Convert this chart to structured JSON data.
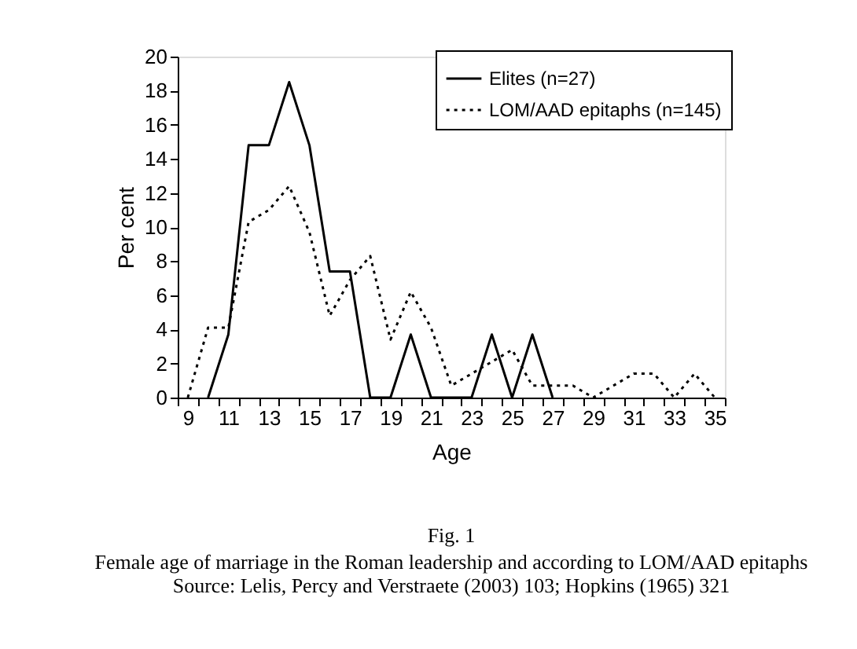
{
  "chart_data": {
    "type": "line",
    "title": "Fig. 1",
    "subtitle": "Female age of marriage in the Roman leadership and according to LOM/AAD epitaphs",
    "annotations": [
      "Source: Lelis, Percy and Verstraete (2003) 103; Hopkins (1965) 321"
    ],
    "xlabel": "Age",
    "ylabel": "Per cent",
    "categories": [
      "9",
      null,
      "11",
      null,
      "13",
      null,
      "15",
      null,
      "17",
      null,
      "19",
      null,
      "21",
      null,
      "23",
      null,
      "25",
      null,
      "27",
      null,
      "29",
      null,
      "31",
      null,
      "33",
      null,
      "35"
    ],
    "series": [
      {
        "name": "Elites (n=27)",
        "color": "#000000",
        "line_style": "solid",
        "values": [
          null,
          0,
          3.7,
          14.8,
          14.8,
          18.5,
          14.8,
          7.4,
          7.4,
          0,
          0,
          3.7,
          0,
          0,
          0,
          3.7,
          0,
          3.7,
          0,
          null,
          null,
          null,
          null,
          null,
          null,
          null,
          null
        ]
      },
      {
        "name": "LOM/AAD epitaphs (n=145)",
        "color": "#000000",
        "line_style": "dotted",
        "values": [
          0,
          4.1,
          4.1,
          10.3,
          11.0,
          12.4,
          9.7,
          4.8,
          6.9,
          8.3,
          3.4,
          6.2,
          4.1,
          0.7,
          1.4,
          2.1,
          2.8,
          0.7,
          0.7,
          0.7,
          0,
          0.7,
          1.4,
          1.4,
          0,
          1.4,
          0
        ]
      }
    ],
    "ylim": [
      0,
      20
    ],
    "yticks": [
      0,
      2,
      4,
      6,
      8,
      10,
      12,
      14,
      16,
      18,
      20
    ],
    "grid": false,
    "legend": "top right",
    "marker": "none"
  }
}
